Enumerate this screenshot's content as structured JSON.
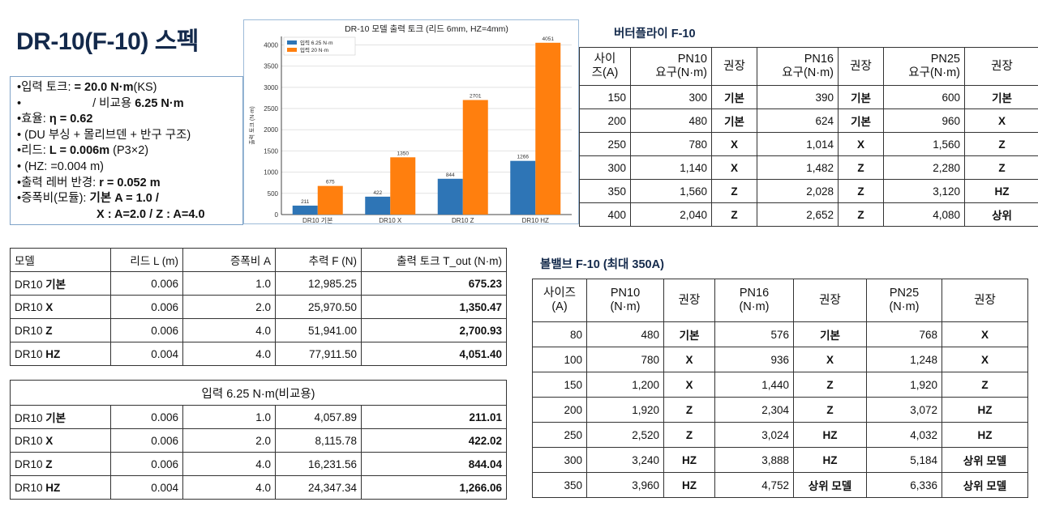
{
  "title": "DR-10(F-10) 스펙",
  "specs": {
    "l1a": "•입력 토크: ",
    "l1b": "= 20.0 N·m",
    "l1c": "(KS)",
    "l2a": "•",
    "l2b": "/ 비교용 ",
    "l2c": "6.25 N·m",
    "l3a": "•효율: ",
    "l3b": "η = 0.62",
    "l4": "• (DU 부싱 + 몰리브덴 + 반구 구조)",
    "l5a": "•리드: ",
    "l5b": "L = 0.006m",
    "l5c": " (P3×2)",
    "l6": "•   (HZ:  =0.004 m)",
    "l7a": "•출력 레버 반경: ",
    "l7b": "r = 0.052 m",
    "l8a": "•증폭비(모듈): ",
    "l8b": "기본 A = 1.0 /",
    "l9": "X : A=2.0 / Z : A=4.0"
  },
  "chart_data": {
    "type": "bar",
    "title": "DR-10 모델 출력 토크 (리드 6mm, HZ=4mm)",
    "categories": [
      "DR10 기본",
      "DR10 X",
      "DR10 Z",
      "DR10 HZ"
    ],
    "series": [
      {
        "name": "입력 6.25 N·m",
        "color": "#2e75b6",
        "values": [
          211,
          422,
          844,
          1266
        ]
      },
      {
        "name": "입력 20 N·m",
        "color": "#ff7f0e",
        "values": [
          675,
          1350,
          2701,
          4051
        ]
      }
    ],
    "xlabel": "",
    "ylabel": "출력 토크 (N·m)",
    "ylim": [
      0,
      4200
    ],
    "yticks": [
      0,
      500,
      1000,
      1500,
      2000,
      2500,
      3000,
      3500,
      4000
    ],
    "grid": true,
    "legend": "top-left"
  },
  "butterfly": {
    "title": "버터플라이 F-10",
    "headers": [
      "사이\n즈(A)",
      "PN10\n요구(N·m)",
      "권장",
      "PN16\n요구(N·m)",
      "권장",
      "PN25\n요구(N·m)",
      "권장"
    ],
    "rows": [
      [
        "150",
        "300",
        "기본",
        "390",
        "기본",
        "600",
        "기본"
      ],
      [
        "200",
        "480",
        "기본",
        "624",
        "기본",
        "960",
        "X"
      ],
      [
        "250",
        "780",
        "X",
        "1,014",
        "X",
        "1,560",
        "Z"
      ],
      [
        "300",
        "1,140",
        "X",
        "1,482",
        "Z",
        "2,280",
        "Z"
      ],
      [
        "350",
        "1,560",
        "Z",
        "2,028",
        "Z",
        "3,120",
        "HZ"
      ],
      [
        "400",
        "2,040",
        "Z",
        "2,652",
        "Z",
        "4,080",
        "상위"
      ]
    ]
  },
  "ball": {
    "title": "볼밸브 F-10 (최대 350A)",
    "headers": [
      "사이즈\n(A)",
      "PN10\n(N·m)",
      "권장",
      "PN16\n(N·m)",
      "권장",
      "PN25\n(N·m)",
      "권장"
    ],
    "rows": [
      [
        "80",
        "480",
        "기본",
        "576",
        "기본",
        "768",
        "X"
      ],
      [
        "100",
        "780",
        "X",
        "936",
        "X",
        "1,248",
        "X"
      ],
      [
        "150",
        "1,200",
        "X",
        "1,440",
        "Z",
        "1,920",
        "Z"
      ],
      [
        "200",
        "1,920",
        "Z",
        "2,304",
        "Z",
        "3,072",
        "HZ"
      ],
      [
        "250",
        "2,520",
        "Z",
        "3,024",
        "HZ",
        "4,032",
        "HZ"
      ],
      [
        "300",
        "3,240",
        "HZ",
        "3,888",
        "HZ",
        "5,184",
        "상위 모델"
      ],
      [
        "350",
        "3,960",
        "HZ",
        "4,752",
        "상위 모델",
        "6,336",
        "상위 모델"
      ]
    ]
  },
  "model20": {
    "headers": [
      "모델",
      "리드 L (m)",
      "증폭비 A",
      "추력 F (N)",
      "출력 토크 T_out (N·m)"
    ],
    "rows": [
      {
        "prefix": "DR10 ",
        "suffix": "기본",
        "lead": "0.006",
        "amp": "1.0",
        "force": "12,985.25",
        "torque": "675.23"
      },
      {
        "prefix": "DR10 ",
        "suffix": "X",
        "lead": "0.006",
        "amp": "2.0",
        "force": "25,970.50",
        "torque": "1,350.47"
      },
      {
        "prefix": "DR10 ",
        "suffix": "Z",
        "lead": "0.006",
        "amp": "4.0",
        "force": "51,941.00",
        "torque": "2,700.93"
      },
      {
        "prefix": "DR10 ",
        "suffix": "HZ",
        "lead": "0.004",
        "amp": "4.0",
        "force": "77,911.50",
        "torque": "4,051.40"
      }
    ]
  },
  "model625": {
    "title": "입력 6.25 N·m(비교용)",
    "rows": [
      {
        "prefix": "DR10 ",
        "suffix": "기본",
        "lead": "0.006",
        "amp": "1.0",
        "force": "4,057.89",
        "torque": "211.01"
      },
      {
        "prefix": "DR10 ",
        "suffix": "X",
        "lead": "0.006",
        "amp": "2.0",
        "force": "8,115.78",
        "torque": "422.02"
      },
      {
        "prefix": "DR10 ",
        "suffix": "Z",
        "lead": "0.006",
        "amp": "4.0",
        "force": "16,231.56",
        "torque": "844.04"
      },
      {
        "prefix": "DR10 ",
        "suffix": "HZ",
        "lead": "0.004",
        "amp": "4.0",
        "force": "24,347.34",
        "torque": "1,266.06"
      }
    ]
  }
}
